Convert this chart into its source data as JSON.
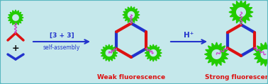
{
  "bg_color": "#c5e8eb",
  "border_color": "#5ab8c0",
  "red_color": "#dd1111",
  "blue_color": "#2233cc",
  "green_color": "#22cc00",
  "magenta_color": "#cc44cc",
  "arrow_color": "#2233cc",
  "text_color_arrow": "#2233cc",
  "text_weak": "#dd1111",
  "text_strong": "#dd1111",
  "plus_color": "#111111",
  "label_arrow1": "[3 + 3]",
  "label_arrow1b": "self-assembly",
  "label_arrow2": "H⁺",
  "label_weak": "Weak fluorescence",
  "label_strong": "Strong fluorescence",
  "fig_w": 3.78,
  "fig_h": 1.19,
  "dpi": 100
}
